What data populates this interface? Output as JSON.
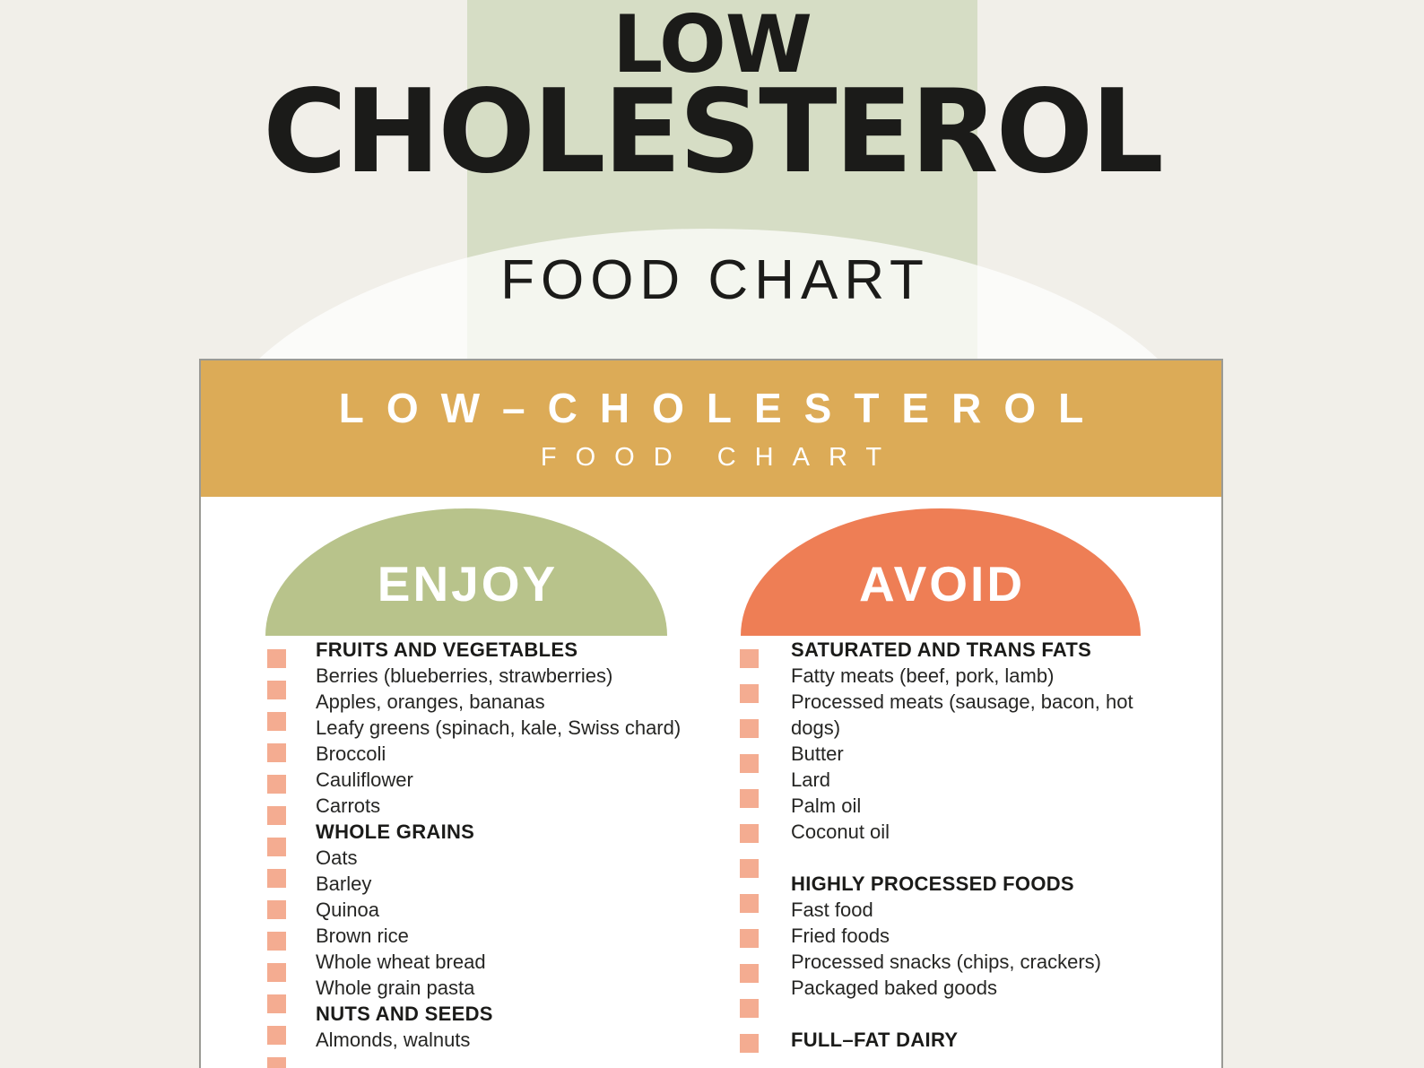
{
  "page": {
    "background_color": "#f1efe9",
    "band_color": "#d6ddc5",
    "dome_color": "rgba(255,255,255,0.72)"
  },
  "hero": {
    "title_line1": "LOW",
    "title_line2": "CHOLESTEROL",
    "subtitle": "FOOD CHART",
    "text_color": "#1b1b19"
  },
  "card": {
    "background_color": "#ffffff",
    "border_color": "#9a9a95",
    "checkbox_color": "#f4ac91",
    "header": {
      "background_color": "#dcab57",
      "title": "LOW–CHOLESTEROL",
      "subtitle": "FOOD CHART",
      "text_color": "#ffffff"
    },
    "columns": [
      {
        "badge": {
          "label": "ENJOY",
          "color": "#b8c38b"
        },
        "entries": [
          {
            "text": "FRUITS AND VEGETABLES",
            "style": "header"
          },
          {
            "text": "Berries (blueberries, strawberries)",
            "style": "item"
          },
          {
            "text": "Apples, oranges, bananas",
            "style": "item"
          },
          {
            "text": "Leafy greens (spinach, kale, Swiss chard)",
            "style": "item"
          },
          {
            "text": "Broccoli",
            "style": "item"
          },
          {
            "text": "Cauliflower",
            "style": "item"
          },
          {
            "text": "Carrots",
            "style": "item"
          },
          {
            "text": "WHOLE GRAINS",
            "style": "header"
          },
          {
            "text": "Oats",
            "style": "item"
          },
          {
            "text": "Barley",
            "style": "item"
          },
          {
            "text": "Quinoa",
            "style": "item"
          },
          {
            "text": "Brown rice",
            "style": "item"
          },
          {
            "text": "Whole wheat bread",
            "style": "item"
          },
          {
            "text": "Whole grain pasta",
            "style": "item"
          },
          {
            "text": "NUTS AND SEEDS",
            "style": "header"
          },
          {
            "text": "Almonds, walnuts",
            "style": "item"
          }
        ]
      },
      {
        "badge": {
          "label": "AVOID",
          "color": "#ee7e55"
        },
        "entries": [
          {
            "text": "SATURATED AND TRANS FATS",
            "style": "header"
          },
          {
            "text": "Fatty meats (beef, pork, lamb)",
            "style": "item"
          },
          {
            "text": "Processed meats (sausage, bacon, hot dogs)",
            "style": "item"
          },
          {
            "text": "Butter",
            "style": "item"
          },
          {
            "text": "Lard",
            "style": "item"
          },
          {
            "text": "Palm oil",
            "style": "item"
          },
          {
            "text": "Coconut oil",
            "style": "item"
          },
          {
            "text": "",
            "style": "blank"
          },
          {
            "text": "HIGHLY PROCESSED FOODS",
            "style": "header"
          },
          {
            "text": "Fast food",
            "style": "item"
          },
          {
            "text": "Fried foods",
            "style": "item"
          },
          {
            "text": "Processed snacks (chips, crackers)",
            "style": "item"
          },
          {
            "text": "Packaged baked goods",
            "style": "item"
          },
          {
            "text": "",
            "style": "blank"
          },
          {
            "text": "FULL–FAT DAIRY",
            "style": "header"
          }
        ]
      }
    ]
  }
}
